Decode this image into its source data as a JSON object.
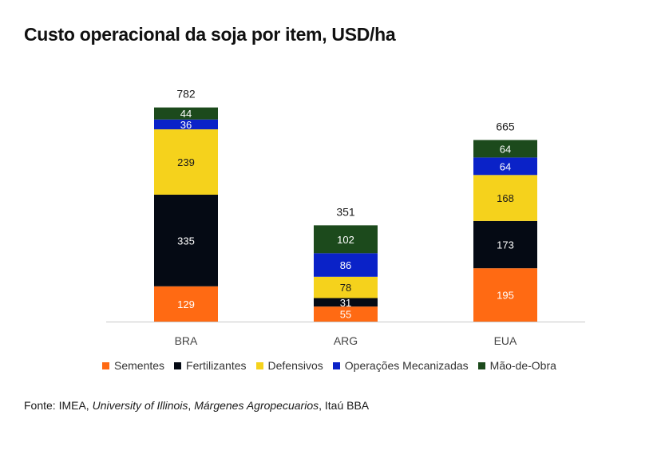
{
  "title": "Custo operacional da soja por item, USD/ha",
  "source": {
    "prefix": "Fonte: IMEA, ",
    "s1": "University of Illinois",
    "sep1": ", ",
    "s2": "Márgenes Agropecuarios",
    "suffix": ", Itaú BBA"
  },
  "chart_data": {
    "type": "bar",
    "stacked": true,
    "categories": [
      "BRA",
      "ARG",
      "EUA"
    ],
    "totals": [
      782,
      351,
      665
    ],
    "series": [
      {
        "name": "Sementes",
        "color": "#FF6A13",
        "values": [
          129,
          55,
          195
        ]
      },
      {
        "name": "Fertilizantes",
        "color": "#050A14",
        "values": [
          335,
          31,
          173
        ]
      },
      {
        "name": "Defensivos",
        "color": "#F5D21C",
        "values": [
          239,
          78,
          168
        ]
      },
      {
        "name": "Operações Mecanizadas",
        "color": "#0A22C8",
        "values": [
          36,
          86,
          64
        ]
      },
      {
        "name": "Mão-de-Obra",
        "color": "#1C4A1C",
        "values": [
          44,
          102,
          64
        ]
      }
    ],
    "title": "Custo operacional da soja por item, USD/ha",
    "legend_position": "bottom",
    "grid": false
  }
}
